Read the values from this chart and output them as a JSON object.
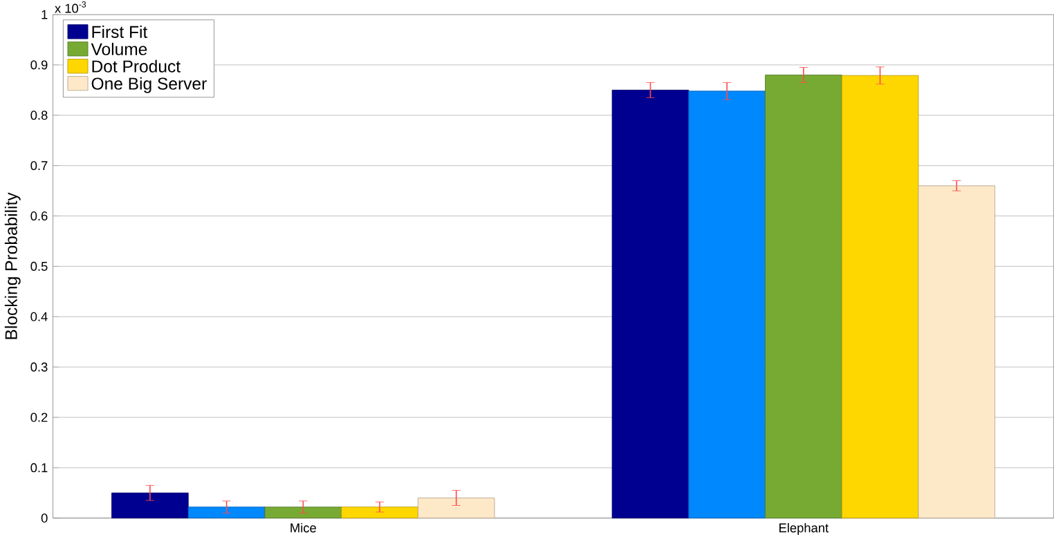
{
  "chart_data": {
    "type": "bar",
    "ylabel": "Blocking Probability",
    "categories": [
      "Mice",
      "Elephant"
    ],
    "series": [
      {
        "name": "First Fit",
        "color": "#000090",
        "values": [
          0.05,
          0.85
        ],
        "errors": [
          0.015,
          0.015
        ]
      },
      {
        "color": "#0088ff",
        "values": [
          0.022,
          0.848
        ],
        "errors": [
          0.012,
          0.017
        ]
      },
      {
        "name": "Volume",
        "color": "#77aa33",
        "values": [
          0.022,
          0.88
        ],
        "errors": [
          0.012,
          0.015
        ]
      },
      {
        "name": "Dot Product",
        "color": "#ffd700",
        "values": [
          0.022,
          0.879
        ],
        "errors": [
          0.01,
          0.017
        ]
      },
      {
        "name": "One Big Server",
        "color": "#fde8c8",
        "values": [
          0.04,
          0.66
        ],
        "errors": [
          0.015,
          0.01
        ]
      }
    ],
    "ylim": [
      0,
      1
    ],
    "yticks": [
      0,
      0.1,
      0.2,
      0.3,
      0.4,
      0.5,
      0.6,
      0.7,
      0.8,
      0.9,
      1
    ],
    "grid": "y",
    "legend": "top left",
    "annotations": [
      "x 10$^{-3}$"
    ]
  }
}
